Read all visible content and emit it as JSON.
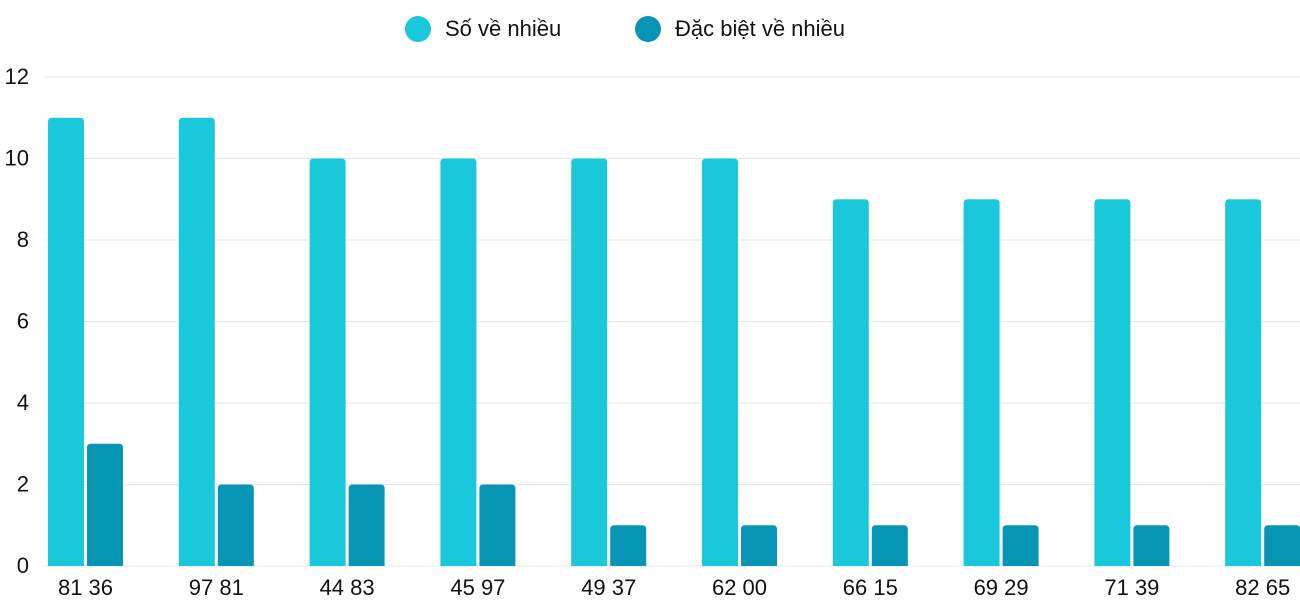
{
  "chart_data": {
    "type": "bar",
    "categories": [
      "81 36",
      "97 81",
      "44 83",
      "45 97",
      "49 37",
      "62 00",
      "66 15",
      "69 29",
      "71 39",
      "82 65"
    ],
    "series": [
      {
        "name": "Số về nhiều",
        "color": "#1ac8db",
        "values": [
          11,
          11,
          10,
          10,
          10,
          10,
          9,
          9,
          9,
          9
        ]
      },
      {
        "name": "Đặc biệt về nhiều",
        "color": "#0795b5",
        "values": [
          3,
          2,
          2,
          2,
          1,
          1,
          1,
          1,
          1,
          1
        ]
      }
    ],
    "ylim": [
      0,
      12
    ],
    "yticks": [
      0,
      2,
      4,
      6,
      8,
      10,
      12
    ],
    "grid": true,
    "legend": "top"
  }
}
